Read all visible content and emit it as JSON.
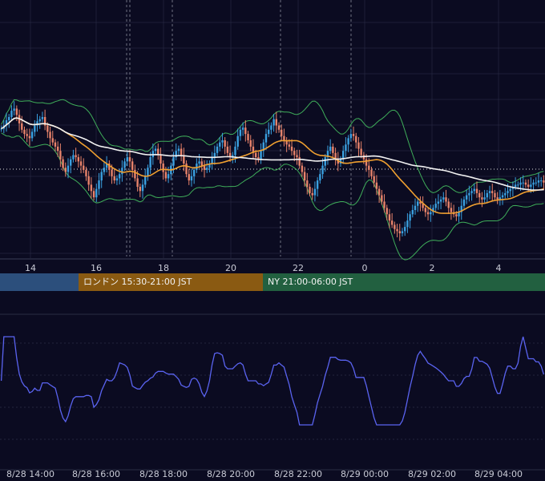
{
  "chart_data": {
    "type": "candlestick",
    "price_axis_ticks": [
      "14",
      "16",
      "18",
      "20",
      "22",
      "0",
      "2",
      "4"
    ],
    "oscillator_axis_ticks": [
      "8/28 14:00",
      "8/28 16:00",
      "8/28 18:00",
      "8/28 20:00",
      "8/28 22:00",
      "8/29 00:00",
      "8/29 02:00",
      "8/29 04:00"
    ],
    "sessions": [
      {
        "label": "",
        "color": "#2c4f7c"
      },
      {
        "label": "ロンドン 15:30-21:00 JST",
        "color": "#8a5a12"
      },
      {
        "label": "NY 21:00-06:00 JST",
        "color": "#226040"
      }
    ],
    "colors": {
      "background": "#0b0b21",
      "up_candle": "#3aa0e0",
      "down_candle": "#e8836b",
      "bollinger": "#3fae5a",
      "ma_short": "#f0a030",
      "ma_long": "#f2f2f2",
      "oscillator": "#5a63f0",
      "grid": "#2a2c44"
    },
    "close": [
      60.5,
      62,
      64.5,
      66,
      69,
      70,
      67,
      63,
      60,
      58,
      57,
      56,
      59,
      62,
      64,
      65,
      66,
      62,
      59,
      56,
      54,
      52,
      50,
      46,
      42,
      40,
      43,
      46,
      48,
      47,
      45,
      43,
      41,
      38,
      34,
      31,
      28,
      32,
      36,
      40,
      42,
      44,
      41,
      38,
      36,
      37,
      39,
      42,
      45,
      47,
      45,
      41,
      37,
      33,
      31,
      34,
      38,
      42,
      47,
      50,
      51,
      48,
      44,
      40,
      37,
      39,
      43,
      47,
      50,
      51,
      48,
      44,
      39,
      36,
      38,
      41,
      44,
      45,
      43,
      41,
      42,
      44,
      47,
      49,
      52,
      54,
      55,
      52,
      49,
      47,
      48,
      52,
      57,
      60,
      61,
      58,
      55,
      52,
      49,
      47,
      46,
      50,
      54,
      58,
      60,
      62,
      65,
      62,
      60,
      57,
      55,
      53,
      52,
      50,
      48,
      47,
      43,
      40,
      36,
      33,
      30,
      29,
      32,
      36,
      39,
      43,
      47,
      50,
      52,
      49,
      46,
      44,
      46,
      50,
      53,
      56,
      58,
      57,
      54,
      51,
      48,
      46,
      43,
      41,
      38,
      35,
      32,
      29,
      26,
      23,
      20,
      17,
      15,
      13,
      12,
      11,
      12,
      14,
      17,
      20,
      22,
      24,
      26,
      25,
      23,
      21,
      20,
      21,
      23,
      25,
      26,
      27,
      28,
      26,
      23,
      21,
      20,
      19,
      21,
      24,
      27,
      29,
      30,
      31,
      32,
      30,
      28,
      27,
      28,
      30,
      31,
      30,
      28,
      27,
      28,
      29,
      30,
      31,
      32,
      33,
      34,
      34,
      35,
      35,
      34,
      33,
      34,
      35,
      35,
      36,
      36,
      35
    ]
  }
}
